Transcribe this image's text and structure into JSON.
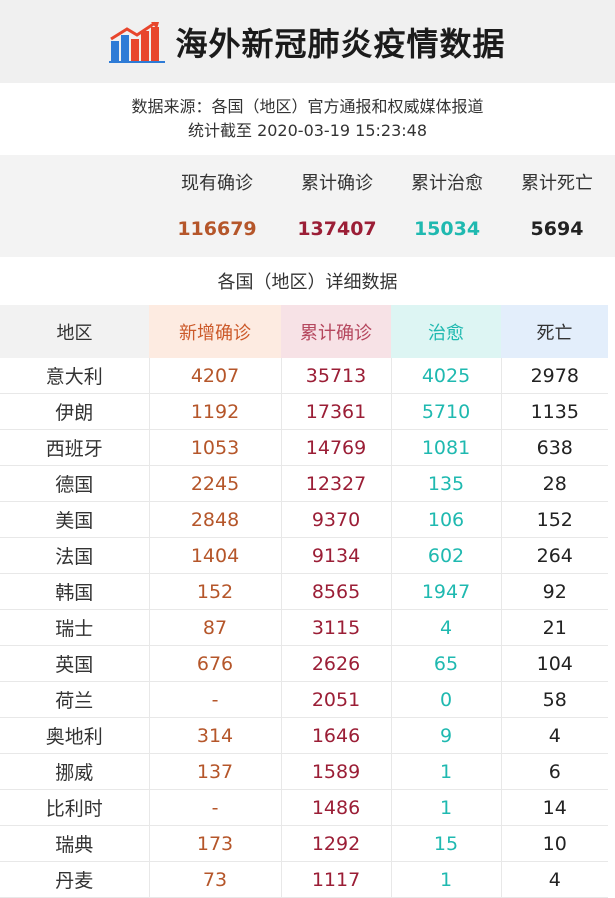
{
  "header": {
    "title": "海外新冠肺炎疫情数据",
    "logo_icon": "bar-chart-trend-icon"
  },
  "source": {
    "line1": "数据来源：各国（地区）官方通报和权威媒体报道",
    "line2": "统计截至 2020-03-19  15:23:48"
  },
  "summary": [
    {
      "label": "现有确诊",
      "value": "116679",
      "color": "#b5562a"
    },
    {
      "label": "累计确诊",
      "value": "137407",
      "color": "#9b1e36"
    },
    {
      "label": "累计治愈",
      "value": "15034",
      "color": "#1fb9b0"
    },
    {
      "label": "累计死亡",
      "value": "5694",
      "color": "#222222"
    }
  ],
  "detail_title": "各国（地区）详细数据",
  "columns": [
    {
      "label": "地区",
      "bg": "#f2f2f2",
      "color": "#333333"
    },
    {
      "label": "新增确诊",
      "bg": "#fdebe1",
      "color": "#cc5a2a"
    },
    {
      "label": "累计确诊",
      "bg": "#f7e2e6",
      "color": "#b5475e"
    },
    {
      "label": "治愈",
      "bg": "#ddf5f3",
      "color": "#1fb9b0"
    },
    {
      "label": "死亡",
      "bg": "#e3eefb",
      "color": "#333333"
    }
  ],
  "rows": [
    [
      "意大利",
      "4207",
      "35713",
      "4025",
      "2978"
    ],
    [
      "伊朗",
      "1192",
      "17361",
      "5710",
      "1135"
    ],
    [
      "西班牙",
      "1053",
      "14769",
      "1081",
      "638"
    ],
    [
      "德国",
      "2245",
      "12327",
      "135",
      "28"
    ],
    [
      "美国",
      "2848",
      "9370",
      "106",
      "152"
    ],
    [
      "法国",
      "1404",
      "9134",
      "602",
      "264"
    ],
    [
      "韩国",
      "152",
      "8565",
      "1947",
      "92"
    ],
    [
      "瑞士",
      "87",
      "3115",
      "4",
      "21"
    ],
    [
      "英国",
      "676",
      "2626",
      "65",
      "104"
    ],
    [
      "荷兰",
      "-",
      "2051",
      "0",
      "58"
    ],
    [
      "奥地利",
      "314",
      "1646",
      "9",
      "4"
    ],
    [
      "挪威",
      "137",
      "1589",
      "1",
      "6"
    ],
    [
      "比利时",
      "-",
      "1486",
      "1",
      "14"
    ],
    [
      "瑞典",
      "173",
      "1292",
      "15",
      "10"
    ],
    [
      "丹麦",
      "73",
      "1117",
      "1",
      "4"
    ]
  ]
}
